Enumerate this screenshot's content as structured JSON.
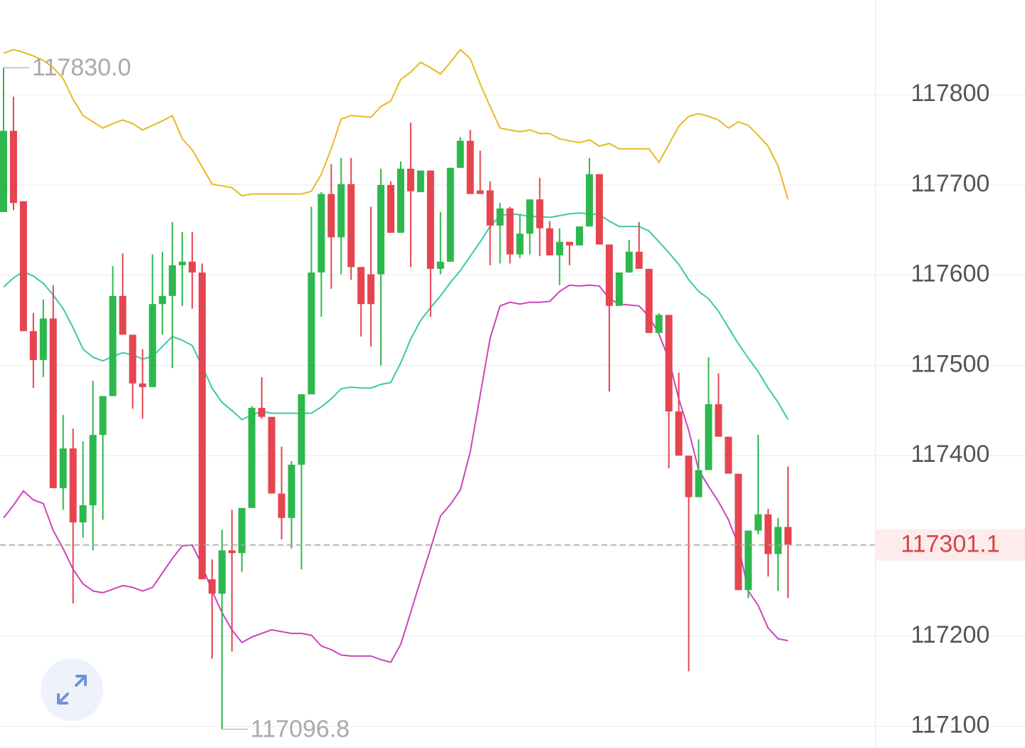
{
  "chart_data": {
    "type": "candlestick",
    "ylim": [
      117076,
      117905
    ],
    "yticks": [
      117100,
      117200,
      117300,
      117400,
      117500,
      117600,
      117700,
      117800
    ],
    "hidden_yticks": [
      117300
    ],
    "grid": true,
    "up_color": "#2db84d",
    "down_color": "#e5454f",
    "open": [
      117670,
      117760,
      117682,
      117538,
      117506,
      117552,
      117364,
      117408,
      117326,
      117345,
      117423,
      117466,
      117577,
      117534,
      117480,
      117476,
      117568,
      117577,
      117611,
      117615,
      117603,
      117263,
      117247,
      117295,
      117292,
      117342,
      117453,
      117443,
      117358,
      117331,
      117390,
      117468,
      117603,
      117690,
      117642,
      117701,
      117609,
      117601,
      117601,
      117700,
      117647,
      117718,
      117692,
      117716,
      117607,
      117615,
      117719,
      117749,
      117694,
      117694,
      117655,
      117674,
      117623,
      117646,
      117684,
      117652,
      117622,
      117637,
      117633,
      117654,
      117712,
      117634,
      117566,
      117603,
      117626,
      117607,
      117536,
      117556,
      117449,
      117400,
      117354,
      117384,
      117457,
      117421,
      117380,
      117251,
      117317,
      117335,
      117291,
      117321
    ],
    "high": [
      117830,
      117798,
      117682,
      117558,
      117573,
      117589,
      117445,
      117430,
      117416,
      117483,
      117466,
      117610,
      117624,
      117534,
      117518,
      117623,
      117626,
      117659,
      117648,
      117648,
      117613,
      117285,
      117318,
      117340,
      117342,
      117455,
      117487,
      117443,
      117410,
      117394,
      117468,
      117676,
      117692,
      117723,
      117730,
      117730,
      117609,
      117676,
      117718,
      117704,
      117726,
      117769,
      117716,
      117716,
      117670,
      117719,
      117753,
      117761,
      117738,
      117704,
      117680,
      117676,
      117668,
      117684,
      117708,
      117660,
      117652,
      117637,
      117654,
      117730,
      117712,
      117634,
      117603,
      117639,
      117659,
      117607,
      117558,
      117556,
      117492,
      117400,
      117418,
      117509,
      117491,
      117421,
      117380,
      117317,
      117423,
      117341,
      117331,
      117388
    ],
    "low": [
      117670,
      117672,
      117538,
      117475,
      117487,
      117364,
      117340,
      117236,
      117309,
      117295,
      117329,
      117466,
      117534,
      117452,
      117441,
      117476,
      117534,
      117497,
      117566,
      117563,
      117263,
      117175,
      117096.8,
      117183,
      117271,
      117342,
      117441,
      117358,
      117307,
      117297,
      117274,
      117468,
      117554,
      117585,
      117601,
      117595,
      117532,
      117521,
      117500,
      117647,
      117647,
      117609,
      117692,
      117554,
      117601,
      117615,
      117719,
      117690,
      117690,
      117611,
      117613,
      117613,
      117619,
      117623,
      117621,
      117622,
      117589,
      117611,
      117633,
      117654,
      117634,
      117471,
      117566,
      117603,
      117607,
      117536,
      117536,
      117386,
      117400,
      117161,
      117354,
      117384,
      117421,
      117380,
      117251,
      117242,
      117313,
      117266,
      117250,
      117242
    ],
    "close": [
      117760,
      117680,
      117538,
      117506,
      117552,
      117364,
      117408,
      117326,
      117345,
      117423,
      117466,
      117577,
      117534,
      117480,
      117476,
      117568,
      117577,
      117611,
      117615,
      117603,
      117263,
      117247,
      117295,
      117292,
      117342,
      117453,
      117443,
      117358,
      117331,
      117390,
      117468,
      117603,
      117690,
      117642,
      117701,
      117609,
      117568,
      117568,
      117700,
      117647,
      117718,
      117693,
      117716,
      117607,
      117615,
      117719,
      117749,
      117690,
      117690,
      117655,
      117674,
      117623,
      117646,
      117684,
      117652,
      117622,
      117637,
      117633,
      117654,
      117712,
      117634,
      117566,
      117603,
      117626,
      117607,
      117536,
      117556,
      117449,
      117400,
      117354,
      117384,
      117457,
      117421,
      117380,
      117251,
      117317,
      117335,
      117291,
      117321,
      117301.1
    ],
    "bands": [
      {
        "color": "#e8b923",
        "values": [
          117846,
          117850,
          117847,
          117843,
          117838,
          117830,
          117818,
          117795,
          117777,
          117770,
          117763,
          117768,
          117772,
          117768,
          117761,
          117766,
          117771,
          117777,
          117751,
          117739,
          117720,
          117701,
          117699,
          117697,
          117688,
          117690,
          117690,
          117690,
          117690,
          117690,
          117690,
          117693,
          117712,
          117740,
          117773,
          117777,
          117776,
          117775,
          117787,
          117793,
          117817,
          117825,
          117836,
          117830,
          117823,
          117836,
          117850,
          117840,
          117812,
          117787,
          117763,
          117761,
          117759,
          117761,
          117757,
          117757,
          117751,
          117749,
          117747,
          117750,
          117743,
          117746,
          117740,
          117740,
          117740,
          117740,
          117725,
          117745,
          117765,
          117776,
          117779,
          117776,
          117772,
          117763,
          117770,
          117766,
          117755,
          117743,
          117721,
          117684
        ]
      },
      {
        "color": "#3cc8a8",
        "values": [
          117587,
          117597,
          117604,
          117599,
          117591,
          117578,
          117563,
          117542,
          117518,
          117509,
          117505,
          117510,
          117514,
          117512,
          117507,
          117510,
          117521,
          117532,
          117528,
          117522,
          117499,
          117475,
          117459,
          117450,
          117440,
          117445,
          117449,
          117447,
          117447,
          117447,
          117447,
          117447,
          117454,
          117463,
          117474,
          117476,
          117475,
          117475,
          117479,
          117481,
          117503,
          117529,
          117550,
          117564,
          117577,
          117592,
          117605,
          117621,
          117637,
          117654,
          117666,
          117668,
          117667,
          117665,
          117665,
          117664,
          117666,
          117668,
          117669,
          117668,
          117667,
          117660,
          117654,
          117654,
          117654,
          117649,
          117637,
          117625,
          117612,
          117595,
          117582,
          117574,
          117560,
          117542,
          117524,
          117508,
          117493,
          117475,
          117459,
          117440
        ]
      },
      {
        "color": "#cc44bb",
        "values": [
          117331,
          117345,
          117361,
          117351,
          117347,
          117317,
          117297,
          117274,
          117258,
          117250,
          117248,
          117252,
          117256,
          117254,
          117250,
          117254,
          117270,
          117286,
          117300,
          117301,
          117278,
          117250,
          117226,
          117207,
          117193,
          117199,
          117203,
          117207,
          117205,
          117203,
          117203,
          117201,
          117189,
          117185,
          117179,
          117178,
          117178,
          117178,
          117174,
          117171,
          117191,
          117226,
          117262,
          117297,
          117333,
          117346,
          117362,
          117404,
          117467,
          117530,
          117566,
          117570,
          117568,
          117570,
          117570,
          117571,
          117582,
          117589,
          117588,
          117589,
          117588,
          117574,
          117568,
          117567,
          117566,
          117554,
          117535,
          117507,
          117463,
          117428,
          117384,
          117366,
          117349,
          117329,
          117301,
          117250,
          117234,
          117209,
          117197,
          117195
        ]
      }
    ],
    "annotations": [
      {
        "value": 117830,
        "label": "117830.0"
      },
      {
        "value": 117096.8,
        "label": "117096.8"
      }
    ],
    "last_price": 117301.1
  }
}
